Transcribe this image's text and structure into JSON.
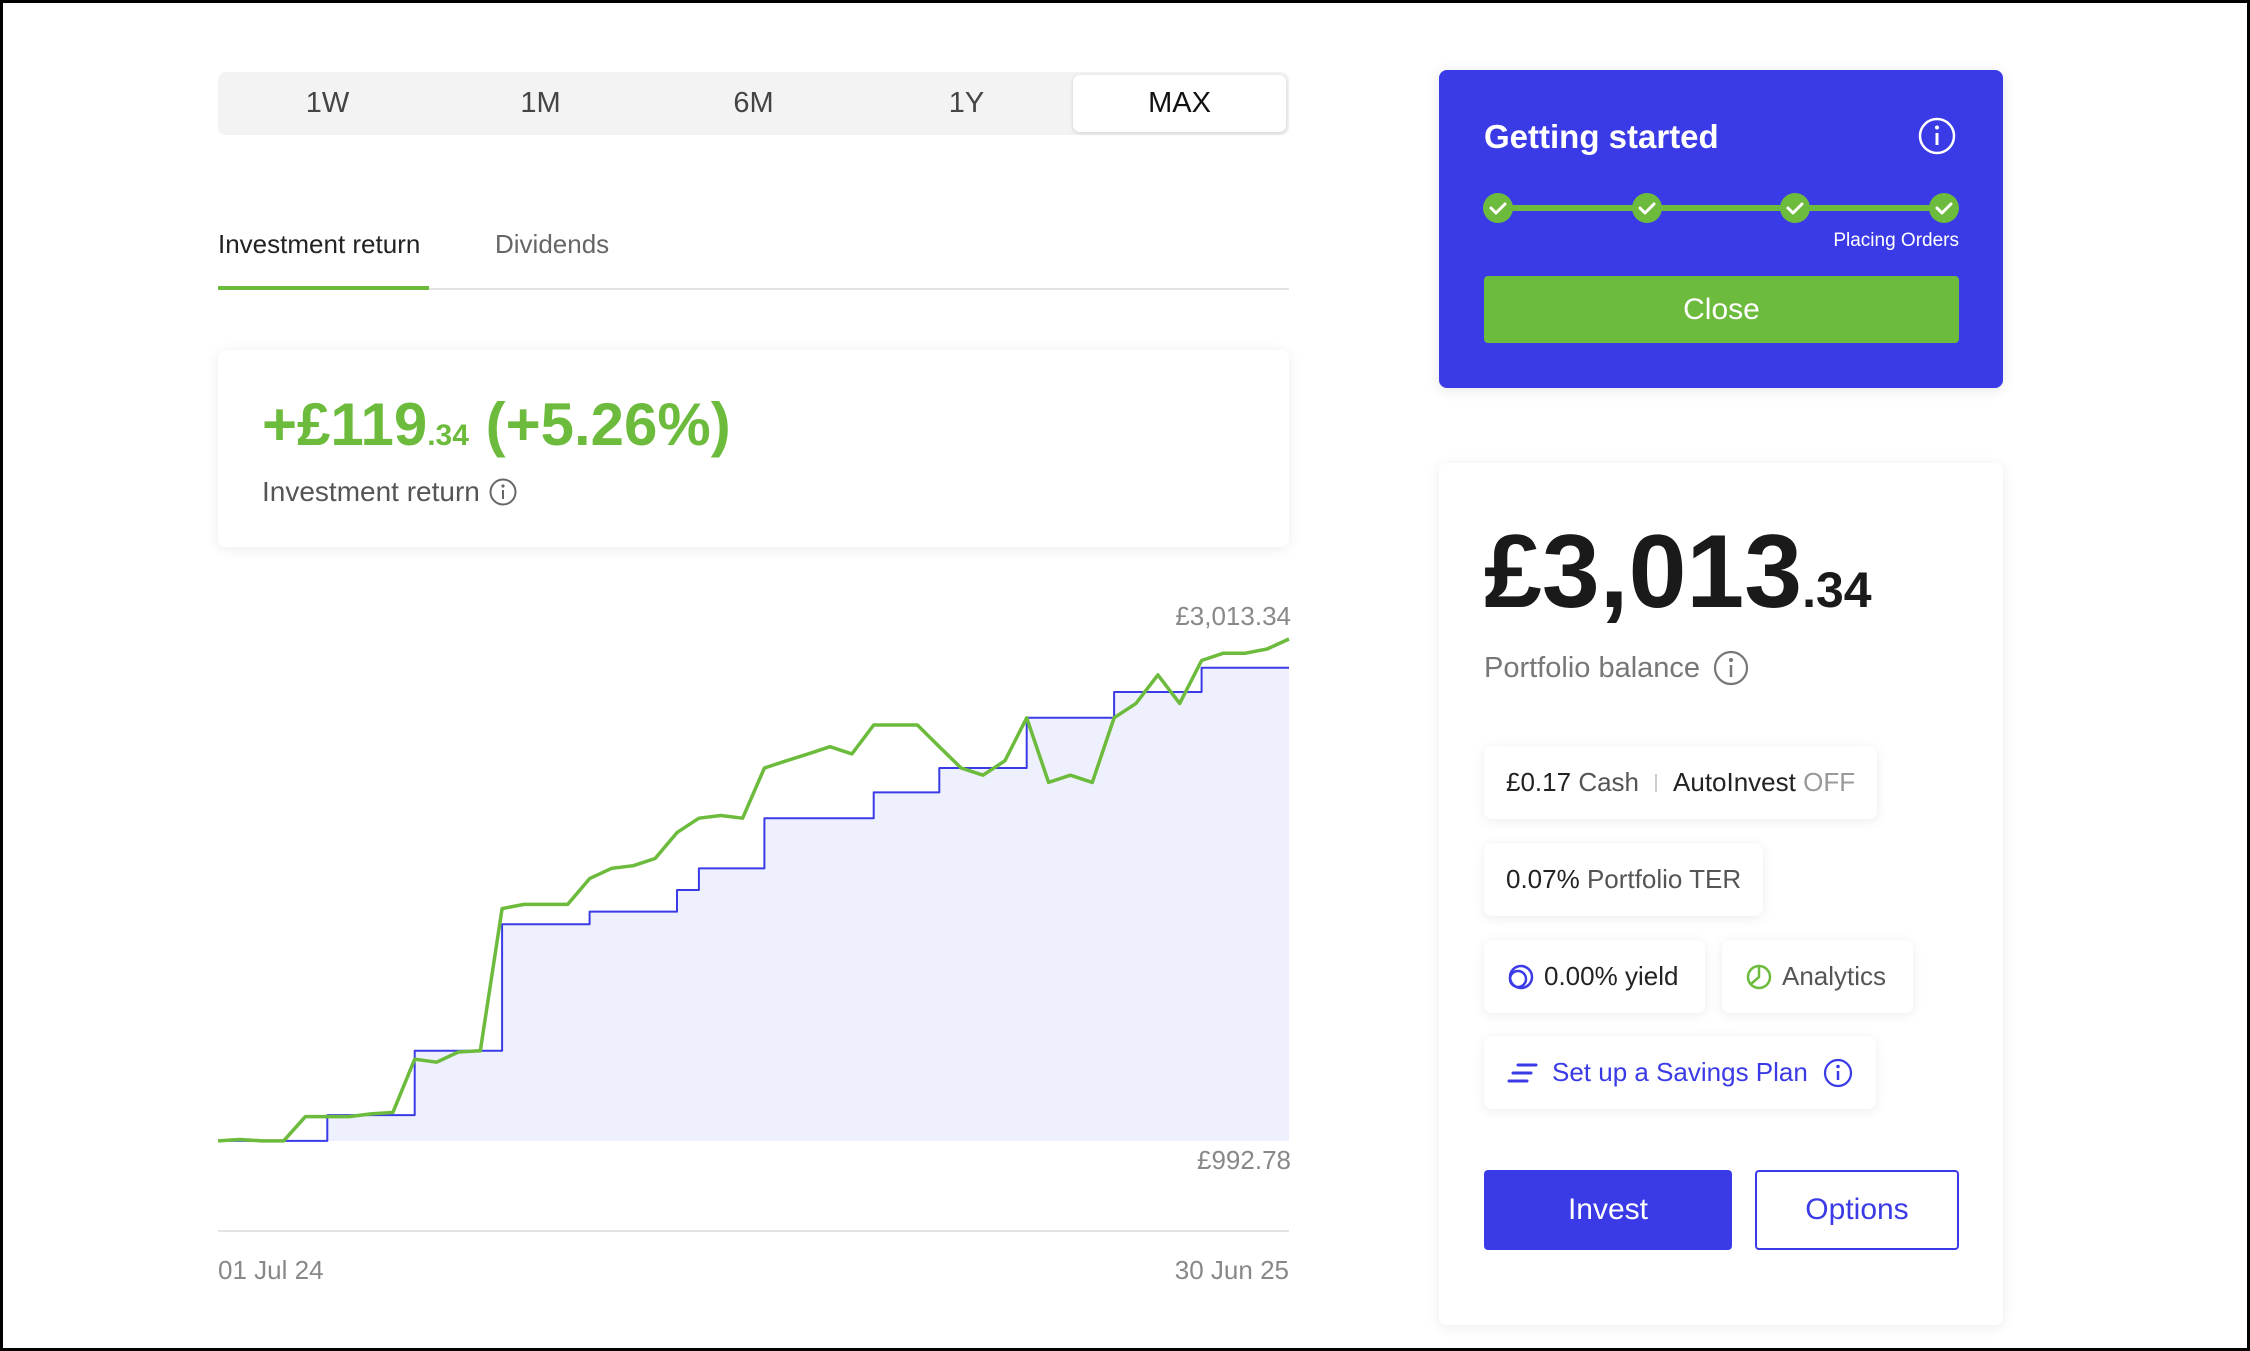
{
  "period_tabs": {
    "options": [
      "1W",
      "1M",
      "6M",
      "1Y",
      "MAX"
    ],
    "selected": "MAX"
  },
  "view_tabs": {
    "options": [
      "Investment return",
      "Dividends"
    ],
    "selected": "Investment return"
  },
  "return_card": {
    "amount_main": "+£119",
    "amount_pence": ".34",
    "percent": "(+5.26%)",
    "label": "Investment return"
  },
  "chart_data": {
    "type": "line",
    "series": [
      {
        "color": "#6cbb3c",
        "values": [
          993,
          999,
          993,
          993,
          1091,
          1091,
          1091,
          1102,
          1108,
          1322,
          1310,
          1351,
          1356,
          1928,
          1945,
          1945,
          1945,
          2049,
          2090,
          2101,
          2130,
          2234,
          2292,
          2303,
          2292,
          2494,
          2523,
          2551,
          2580,
          2551,
          2667,
          2667,
          2667,
          2580,
          2494,
          2465,
          2523,
          2696,
          2436,
          2465,
          2436,
          2696,
          2754,
          2869,
          2754,
          2927,
          2956,
          2956,
          2973,
          3013.34
        ]
      },
      {
        "color": "#3a3be6",
        "step": true,
        "fill": "#eef0fd",
        "values": [
          993,
          993,
          993,
          993,
          993,
          1097,
          1097,
          1097,
          1097,
          1356,
          1356,
          1356,
          1356,
          1865,
          1865,
          1865,
          1865,
          1916,
          1916,
          1916,
          1916,
          2003,
          2090,
          2090,
          2090,
          2292,
          2292,
          2292,
          2292,
          2292,
          2396,
          2396,
          2396,
          2494,
          2494,
          2494,
          2494,
          2696,
          2696,
          2696,
          2696,
          2800,
          2800,
          2800,
          2800,
          2898,
          2898,
          2898,
          2898,
          2898
        ]
      }
    ],
    "xlim": [
      0,
      49
    ],
    "xticks": [
      {
        "value": 0,
        "label": "01 Jul 24"
      },
      {
        "value": 49,
        "label": "30 Jun 25"
      }
    ],
    "ylim": [
      992.78,
      3013.34
    ],
    "yticks": [
      {
        "value": 992.78,
        "label": "£992.78"
      },
      {
        "value": 3013.34,
        "label": "£3,013.34"
      }
    ]
  },
  "getting_started": {
    "title": "Getting started",
    "step_label": "Placing Orders",
    "button": "Close"
  },
  "balance": {
    "main": "£3,013",
    "pence": ".34",
    "label": "Portfolio balance"
  },
  "chips": {
    "cash_amount": "£0.17",
    "cash_label": "Cash",
    "autoinvest_label": "AutoInvest",
    "autoinvest_state": "OFF",
    "ter_value": "0.07%",
    "ter_label": "Portfolio TER",
    "yield_value": "0.00%",
    "yield_label": "yield",
    "analytics": "Analytics",
    "savings_plan": "Set up a Savings Plan"
  },
  "buttons": {
    "invest": "Invest",
    "options": "Options"
  }
}
